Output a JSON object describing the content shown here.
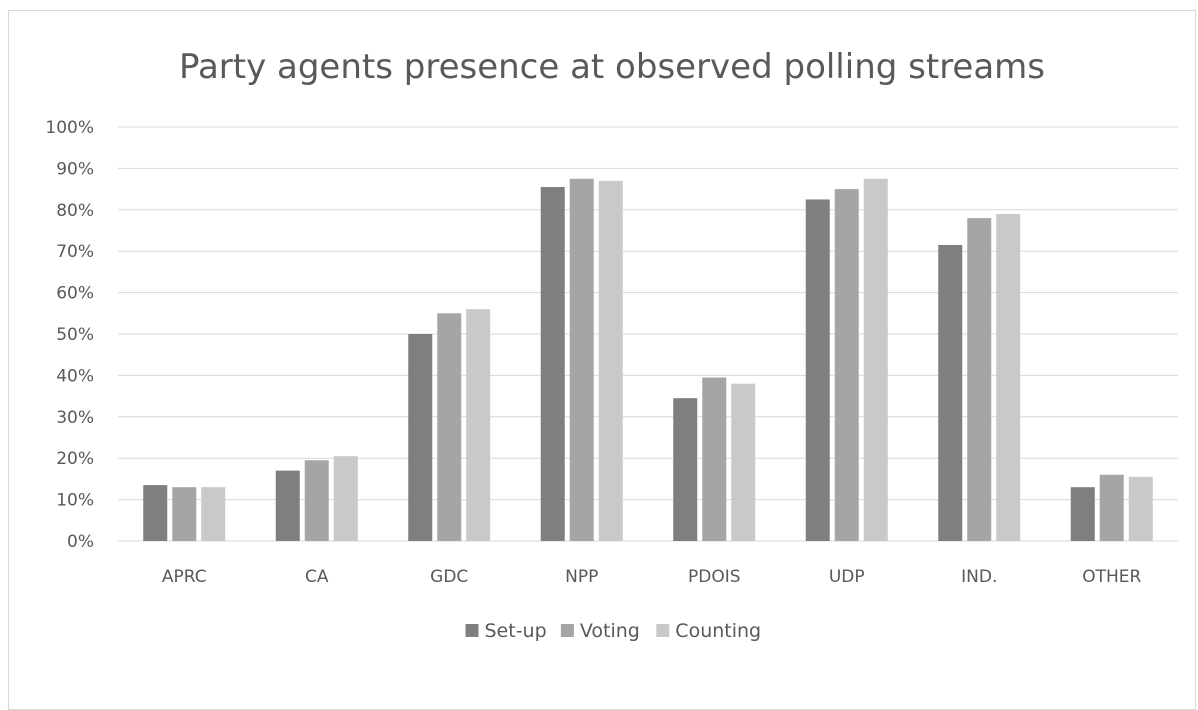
{
  "chart_data": {
    "type": "bar",
    "title": "Party agents presence at observed  polling streams",
    "xlabel": "",
    "ylabel": "",
    "ylim": [
      0,
      100
    ],
    "y_ticks": [
      "0%",
      "10%",
      "20%",
      "30%",
      "40%",
      "50%",
      "60%",
      "70%",
      "80%",
      "90%",
      "100%"
    ],
    "grid": true,
    "legend_position": "bottom",
    "categories": [
      "APRC",
      "CA",
      "GDC",
      "NPP",
      "PDOIS",
      "UDP",
      "IND.",
      "OTHER"
    ],
    "series": [
      {
        "name": "Set-up",
        "color": "#7f7f7f",
        "values": [
          13.5,
          17,
          50,
          85.5,
          34.5,
          82.5,
          71.5,
          13
        ]
      },
      {
        "name": "Voting",
        "color": "#a5a5a5",
        "values": [
          13,
          19.5,
          55,
          87.5,
          39.5,
          85,
          78,
          16
        ]
      },
      {
        "name": "Counting",
        "color": "#c9c9c9",
        "values": [
          13,
          20.5,
          56,
          87,
          38,
          87.5,
          79,
          15.5
        ]
      }
    ]
  }
}
